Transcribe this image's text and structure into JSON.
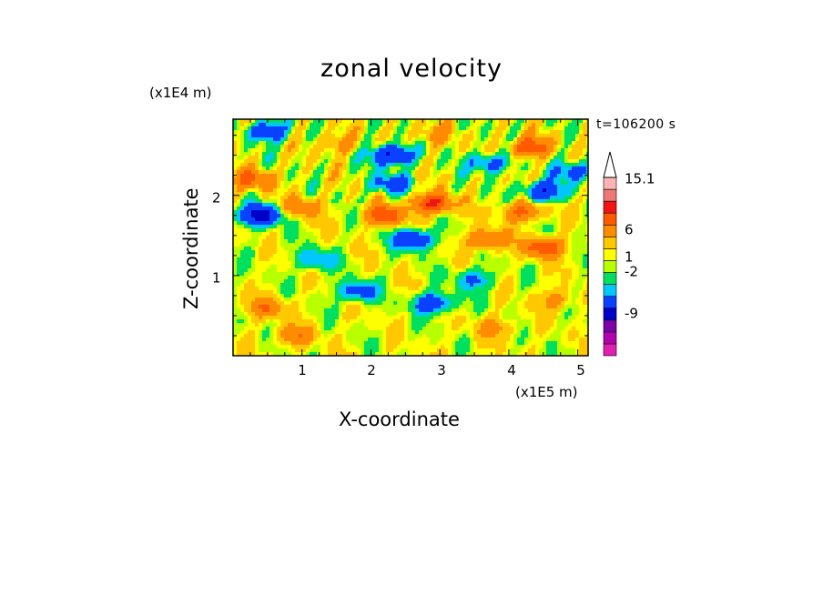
{
  "chart_data": {
    "type": "heatmap",
    "title": "zonal velocity",
    "xlabel": "X-coordinate",
    "ylabel": "Z-coordinate",
    "x_multiplier": "(x1E5 m)",
    "y_multiplier": "(x1E4 m)",
    "time_label": "t=106200 s",
    "xlim": [
      0,
      5.15
    ],
    "ylim": [
      0,
      2.95
    ],
    "xticks": [
      "1",
      "2",
      "3",
      "4",
      "5"
    ],
    "yticks": [
      "1",
      "2"
    ],
    "colorbar": {
      "labels": [
        "15.1",
        "6",
        "1",
        "-2",
        "-9"
      ],
      "bands": [
        "#e020b0",
        "#b000b0",
        "#7a00a8",
        "#0000c8",
        "#0a40ff",
        "#00c8ff",
        "#00e060",
        "#b8ff00",
        "#ffff00",
        "#ffc800",
        "#ff8c00",
        "#ff5a00",
        "#f01414",
        "#f07878",
        "#ffb4b4"
      ],
      "extend_max": true
    },
    "blobs": [
      {
        "x": 0.5,
        "z": 2.8,
        "v": -5
      },
      {
        "x": 2.3,
        "z": 2.5,
        "v": -7
      },
      {
        "x": 0.4,
        "z": 1.75,
        "v": -8
      },
      {
        "x": 4.5,
        "z": 2.05,
        "v": -6
      },
      {
        "x": 2.6,
        "z": 1.45,
        "v": -6
      },
      {
        "x": 2.9,
        "z": 0.65,
        "v": -5
      },
      {
        "x": 1.8,
        "z": 0.8,
        "v": -4
      },
      {
        "x": 3.7,
        "z": 2.4,
        "v": -4
      },
      {
        "x": 4.95,
        "z": 2.3,
        "v": -4
      },
      {
        "x": 2.3,
        "z": 2.15,
        "v": -4
      },
      {
        "x": 0.3,
        "z": 2.2,
        "v": 4
      },
      {
        "x": 2.2,
        "z": 1.75,
        "v": 5
      },
      {
        "x": 2.9,
        "z": 1.9,
        "v": 6
      },
      {
        "x": 4.3,
        "z": 2.6,
        "v": 5
      },
      {
        "x": 3.7,
        "z": 1.45,
        "v": 4
      },
      {
        "x": 4.5,
        "z": 1.35,
        "v": 5
      },
      {
        "x": 4.2,
        "z": 1.8,
        "v": 4
      },
      {
        "x": 0.5,
        "z": 0.6,
        "v": 3
      },
      {
        "x": 1.0,
        "z": 1.85,
        "v": 3
      },
      {
        "x": 1.5,
        "z": 2.65,
        "v": 2
      },
      {
        "x": 3.8,
        "z": 0.35,
        "v": 2
      },
      {
        "x": 1.2,
        "z": 1.2,
        "v": -3
      },
      {
        "x": 3.5,
        "z": 0.95,
        "v": -3
      },
      {
        "x": 4.7,
        "z": 0.7,
        "v": 2
      },
      {
        "x": 0.9,
        "z": 0.25,
        "v": 3
      },
      {
        "x": 2.9,
        "z": 2.75,
        "v": 2
      }
    ]
  }
}
